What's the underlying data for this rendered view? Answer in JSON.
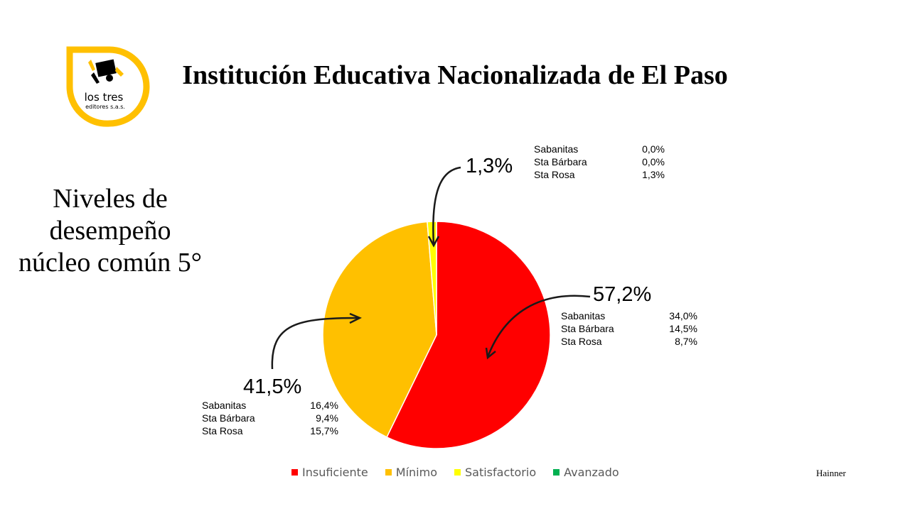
{
  "header": {
    "title": "Institución Educativa Nacionalizada de El Paso",
    "subtitle": "Niveles de desempeño núcleo común 5°",
    "logo_text_main": "los tres",
    "logo_text_sub": "editores s.a.s.",
    "author": "Hainner"
  },
  "colors": {
    "insuficiente": "#ff0000",
    "minimo": "#ffc000",
    "satisfactorio": "#ffff00",
    "avanzado": "#00b050",
    "logo": "#ffc000"
  },
  "chart_data": {
    "type": "pie",
    "categories": [
      "Insuficiente",
      "Mínimo",
      "Satisfactorio",
      "Avanzado"
    ],
    "values": [
      57.2,
      41.5,
      1.3,
      0.0
    ],
    "value_labels": [
      "57,2%",
      "41,5%",
      "1,3%",
      ""
    ],
    "breakdown": {
      "insuficiente": [
        {
          "name": "Sabanitas",
          "value": "34,0%"
        },
        {
          "name": "Sta Bárbara",
          "value": "14,5%"
        },
        {
          "name": "Sta Rosa",
          "value": "8,7%"
        }
      ],
      "minimo": [
        {
          "name": "Sabanitas",
          "value": "16,4%"
        },
        {
          "name": "Sta Bárbara",
          "value": "9,4%"
        },
        {
          "name": "Sta Rosa",
          "value": "15,7%"
        }
      ],
      "satisfactorio": [
        {
          "name": "Sabanitas",
          "value": "0,0%"
        },
        {
          "name": "Sta Bárbara",
          "value": "0,0%"
        },
        {
          "name": "Sta Rosa",
          "value": "1,3%"
        }
      ]
    },
    "legend_position": "bottom"
  }
}
